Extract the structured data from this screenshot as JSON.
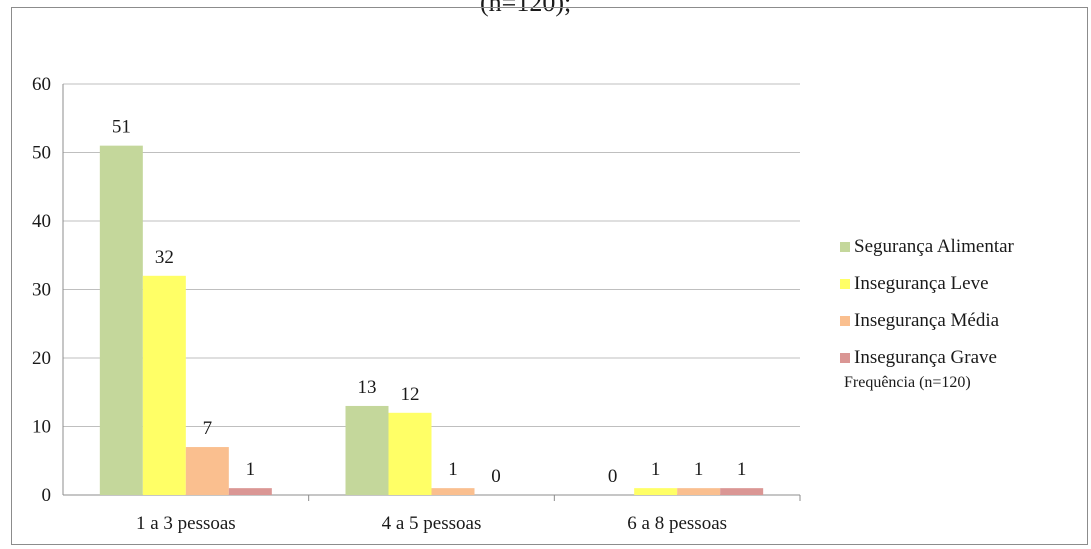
{
  "page": {
    "title_fragment": "(n=120);"
  },
  "legend": {
    "note": "Frequência (n=120)"
  },
  "chart_data": {
    "type": "bar",
    "categories": [
      "1 a 3 pessoas",
      "4 a 5 pessoas",
      "6 a 8 pessoas"
    ],
    "series": [
      {
        "name": "Segurança Alimentar",
        "values": [
          51,
          13,
          0
        ],
        "color": "#c4d79b"
      },
      {
        "name": "Insegurança Leve",
        "values": [
          32,
          12,
          1
        ],
        "color": "#ffff66"
      },
      {
        "name": "Insegurança Média",
        "values": [
          7,
          1,
          1
        ],
        "color": "#fabf8f"
      },
      {
        "name": "Insegurança Grave",
        "values": [
          1,
          0,
          1
        ],
        "color": "#da9694"
      }
    ],
    "ylim": [
      0,
      60
    ],
    "yticks": [
      0,
      10,
      20,
      30,
      40,
      50,
      60
    ],
    "data_labels": [
      [
        51,
        32,
        7,
        1
      ],
      [
        13,
        12,
        1,
        0
      ],
      [
        0,
        1,
        1,
        1
      ]
    ],
    "grid": true,
    "legend_position": "right",
    "title": "",
    "xlabel": "",
    "ylabel": ""
  }
}
